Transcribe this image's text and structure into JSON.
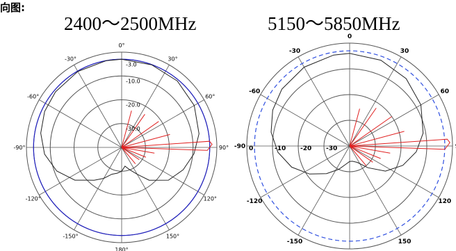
{
  "header": {
    "text": "向图:"
  },
  "chart_data": [
    {
      "type": "polar",
      "title": "2400～2500MHz",
      "rotation": "clockwise from top (0°)",
      "angle_ticks": [
        {
          "deg": 0,
          "label": "0°"
        },
        {
          "deg": 30,
          "label": "30°"
        },
        {
          "deg": 60,
          "label": "60°"
        },
        {
          "deg": 90,
          "label": "90°"
        },
        {
          "deg": 120,
          "label": "120°"
        },
        {
          "deg": 150,
          "label": "150°"
        },
        {
          "deg": 180,
          "label": "180°"
        },
        {
          "deg": -150,
          "label": "-150°"
        },
        {
          "deg": -120,
          "label": "-120°"
        },
        {
          "deg": -90,
          "label": "-90°"
        },
        {
          "deg": -60,
          "label": "-60°"
        },
        {
          "deg": -30,
          "label": "-30°"
        }
      ],
      "rings": [
        {
          "value": 0,
          "label": ""
        },
        {
          "value": -3,
          "label": "-3.0"
        },
        {
          "value": -10,
          "label": "-10.0"
        },
        {
          "value": -20,
          "label": "-20.0"
        },
        {
          "value": -30,
          "label": "-30.0"
        }
      ],
      "scale": {
        "r_max": 0,
        "r_min": -40
      },
      "reference_ring_db": -3,
      "colors": {
        "black_series": "#222222",
        "red_series": "#e02020",
        "reference": "#2020c0",
        "grid": "#555555"
      },
      "series": [
        {
          "color_key": "black_series",
          "points": [
            [
              0,
              -3
            ],
            [
              20,
              -3.1
            ],
            [
              40,
              -3.6
            ],
            [
              60,
              -4.8
            ],
            [
              80,
              -7
            ],
            [
              95,
              -9.5
            ],
            [
              110,
              -12.5
            ],
            [
              125,
              -16
            ],
            [
              140,
              -22
            ],
            [
              150,
              -27
            ],
            [
              160,
              -30
            ],
            [
              170,
              -32
            ],
            [
              180,
              -30
            ],
            [
              190,
              -29
            ],
            [
              200,
              -28
            ],
            [
              210,
              -25
            ],
            [
              220,
              -22
            ],
            [
              235,
              -16
            ],
            [
              250,
              -11
            ],
            [
              265,
              -7.5
            ],
            [
              280,
              -5.5
            ],
            [
              295,
              -4.3
            ],
            [
              310,
              -3.7
            ],
            [
              330,
              -3.2
            ],
            [
              350,
              -3
            ],
            [
              360,
              -3
            ]
          ]
        },
        {
          "color_key": "red_series",
          "points": [
            [
              0,
              -40
            ],
            [
              15,
              -24
            ],
            [
              22,
              -40
            ],
            [
              35,
              -23
            ],
            [
              42,
              -40
            ],
            [
              55,
              -21
            ],
            [
              62,
              -40
            ],
            [
              75,
              -19
            ],
            [
              82,
              -40
            ],
            [
              86,
              -3
            ],
            [
              88,
              -2
            ],
            [
              90,
              -3
            ],
            [
              92,
              -4
            ],
            [
              94,
              -40
            ],
            [
              100,
              -26
            ],
            [
              105,
              -40
            ],
            [
              112,
              -29
            ],
            [
              118,
              -40
            ],
            [
              125,
              -31
            ],
            [
              130,
              -40
            ],
            [
              140,
              -31
            ],
            [
              145,
              -40
            ],
            [
              360,
              -40
            ]
          ]
        }
      ]
    },
    {
      "type": "polar",
      "title": "5150～5850MHz",
      "rotation": "clockwise from top (0)",
      "angle_ticks": [
        {
          "deg": 0,
          "label": "0"
        },
        {
          "deg": 30,
          "label": "30"
        },
        {
          "deg": 60,
          "label": "60"
        },
        {
          "deg": 90,
          "label": "90"
        },
        {
          "deg": 120,
          "label": "120"
        },
        {
          "deg": 150,
          "label": "150"
        },
        {
          "deg": 180,
          "label": "±180"
        },
        {
          "deg": -150,
          "label": "-150"
        },
        {
          "deg": -120,
          "label": "-120"
        },
        {
          "deg": -90,
          "label": "-90"
        },
        {
          "deg": -60,
          "label": "-60"
        },
        {
          "deg": -30,
          "label": "-30"
        }
      ],
      "rings": [
        {
          "value": 0,
          "label": "0"
        },
        {
          "value": -10,
          "label": "-10"
        },
        {
          "value": -20,
          "label": "-20"
        },
        {
          "value": -30,
          "label": "-30"
        }
      ],
      "scale": {
        "r_max": 0,
        "r_min": -40
      },
      "reference_ring_db": -3,
      "colors": {
        "black_series": "#222222",
        "red_series": "#e02020",
        "reference": "#3050e0",
        "grid": "#555555"
      },
      "series": [
        {
          "color_key": "black_series",
          "points": [
            [
              0,
              -4
            ],
            [
              20,
              -4.5
            ],
            [
              40,
              -5.8
            ],
            [
              60,
              -8
            ],
            [
              80,
              -11
            ],
            [
              95,
              -14
            ],
            [
              110,
              -18
            ],
            [
              125,
              -23
            ],
            [
              140,
              -29
            ],
            [
              155,
              -33
            ],
            [
              170,
              -34
            ],
            [
              180,
              -34
            ],
            [
              190,
              -33
            ],
            [
              205,
              -30
            ],
            [
              220,
              -26
            ],
            [
              235,
              -21
            ],
            [
              250,
              -16
            ],
            [
              265,
              -12
            ],
            [
              280,
              -9
            ],
            [
              295,
              -7
            ],
            [
              310,
              -5.6
            ],
            [
              330,
              -4.6
            ],
            [
              350,
              -4.1
            ],
            [
              360,
              -4
            ]
          ]
        },
        {
          "color_key": "red_series",
          "points": [
            [
              0,
              -40
            ],
            [
              15,
              -25
            ],
            [
              22,
              -40
            ],
            [
              35,
              -22
            ],
            [
              42,
              -40
            ],
            [
              55,
              -20
            ],
            [
              62,
              -40
            ],
            [
              75,
              -18
            ],
            [
              82,
              -40
            ],
            [
              86,
              -2
            ],
            [
              88,
              -1
            ],
            [
              90,
              -2
            ],
            [
              92,
              -3
            ],
            [
              94,
              -40
            ],
            [
              100,
              -24
            ],
            [
              105,
              -40
            ],
            [
              112,
              -27
            ],
            [
              118,
              -40
            ],
            [
              125,
              -29
            ],
            [
              130,
              -40
            ],
            [
              140,
              -30
            ],
            [
              145,
              -40
            ],
            [
              360,
              -40
            ]
          ]
        }
      ]
    }
  ]
}
